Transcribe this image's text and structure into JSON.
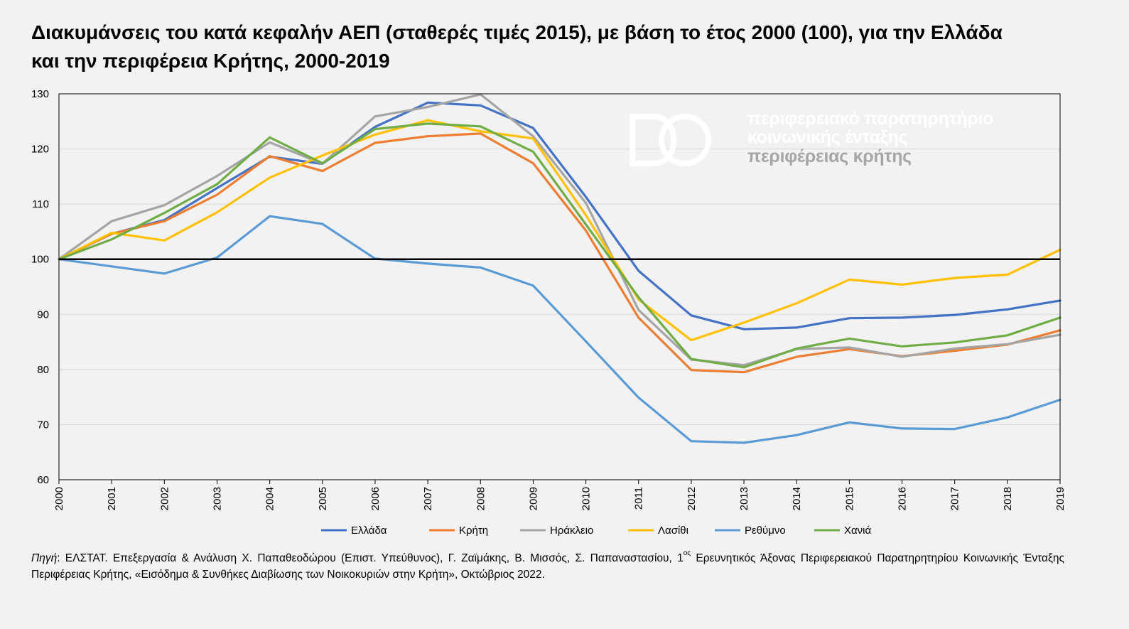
{
  "title_line1": "Διακυμάνσεις του κατά κεφαλήν ΑΕΠ (σταθερές τιμές 2015), με βάση το έτος 2000 (100), για την Ελλάδα",
  "title_line2": "και την περιφέρεια Κρήτης, 2000-2019",
  "watermark": {
    "line1": "περιφερειακό παρατηρητήριο",
    "line2": "κοινωνικής ένταξης",
    "line3": "περιφέρειας κρήτης"
  },
  "source": {
    "label": "Πηγή",
    "text_part1": ": ΕΛΣΤΑΤ. Επεξεργασία & Ανάλυση Χ. Παπαθεοδώρου (Επιστ. Υπεύθυνος), Γ. Ζαϊμάκης, Β. Μισσός, Σ. Παπαναστασίου, 1",
    "superscript": "ος",
    "text_part2": " Ερευνητικός Άξονας Περιφερειακού Παρατηρητηρίου Κοινωνικής Ένταξης Περιφέρειας Κρήτης, «Εισόδημα & Συνθήκες Διαβίωσης των Νοικοκυριών στην Κρήτη», Οκτώβριος 2022."
  },
  "colors": {
    "grid": "#d9d9d9",
    "baseline": "#000000"
  },
  "chart_data": {
    "type": "line",
    "title": "Διακυμάνσεις του κατά κεφαλήν ΑΕΠ (σταθερές τιμές 2015), με βάση το έτος 2000 (100), για την Ελλάδα και την περιφέρεια Κρήτης, 2000-2019",
    "xlabel": "",
    "ylabel": "",
    "ylim": [
      60,
      130
    ],
    "yticks": [
      "60",
      "70",
      "80",
      "90",
      "100",
      "110",
      "120",
      "130"
    ],
    "grid": true,
    "reference_line": 100,
    "legend_position": "bottom",
    "categories": [
      "2000",
      "2001",
      "2002",
      "2003",
      "2004",
      "2005",
      "2006",
      "2007",
      "2008",
      "2009",
      "2010",
      "2011",
      "2012",
      "2013",
      "2014",
      "2015",
      "2016",
      "2017",
      "2018",
      "2019"
    ],
    "series": [
      {
        "name": "Ελλάδα",
        "color": "#4472c4",
        "values": [
          100,
          104.6,
          107.1,
          112.9,
          118.6,
          117.3,
          124.0,
          128.4,
          127.9,
          123.8,
          111.3,
          97.9,
          89.8,
          87.3,
          87.6,
          89.3,
          89.4,
          89.9,
          90.9,
          92.5
        ]
      },
      {
        "name": "Κρήτη",
        "color": "#ed7d31",
        "values": [
          100,
          104.6,
          106.9,
          111.7,
          118.7,
          116.0,
          121.1,
          122.3,
          122.8,
          117.4,
          105.2,
          89.4,
          79.9,
          79.5,
          82.3,
          83.7,
          82.4,
          83.4,
          84.5,
          87.1
        ]
      },
      {
        "name": "Ηράκλειο",
        "color": "#a5a5a5",
        "values": [
          100,
          106.9,
          109.8,
          115.1,
          121.2,
          117.3,
          125.9,
          127.6,
          129.9,
          122.3,
          110.2,
          90.8,
          81.8,
          80.8,
          83.7,
          84.0,
          82.3,
          83.8,
          84.6,
          86.3
        ]
      },
      {
        "name": "Λασίθι",
        "color": "#ffc000",
        "values": [
          100,
          104.8,
          103.4,
          108.5,
          114.8,
          118.8,
          122.6,
          125.2,
          123.2,
          121.9,
          108.0,
          92.7,
          85.3,
          88.5,
          92.0,
          96.3,
          95.4,
          96.6,
          97.2,
          101.7
        ]
      },
      {
        "name": "Ρεθύμνο",
        "color": "#5b9bd5",
        "values": [
          100,
          98.7,
          97.4,
          100.3,
          107.8,
          106.4,
          100.1,
          99.2,
          98.5,
          95.2,
          85.1,
          74.9,
          67.0,
          66.7,
          68.1,
          70.4,
          69.3,
          69.2,
          71.3,
          74.5
        ]
      },
      {
        "name": "Χανιά",
        "color": "#70ad47",
        "values": [
          100,
          103.6,
          108.4,
          113.6,
          122.1,
          117.4,
          123.6,
          124.6,
          124.1,
          119.5,
          106.3,
          93.1,
          81.9,
          80.4,
          83.8,
          85.6,
          84.2,
          84.9,
          86.2,
          89.4
        ]
      }
    ]
  }
}
